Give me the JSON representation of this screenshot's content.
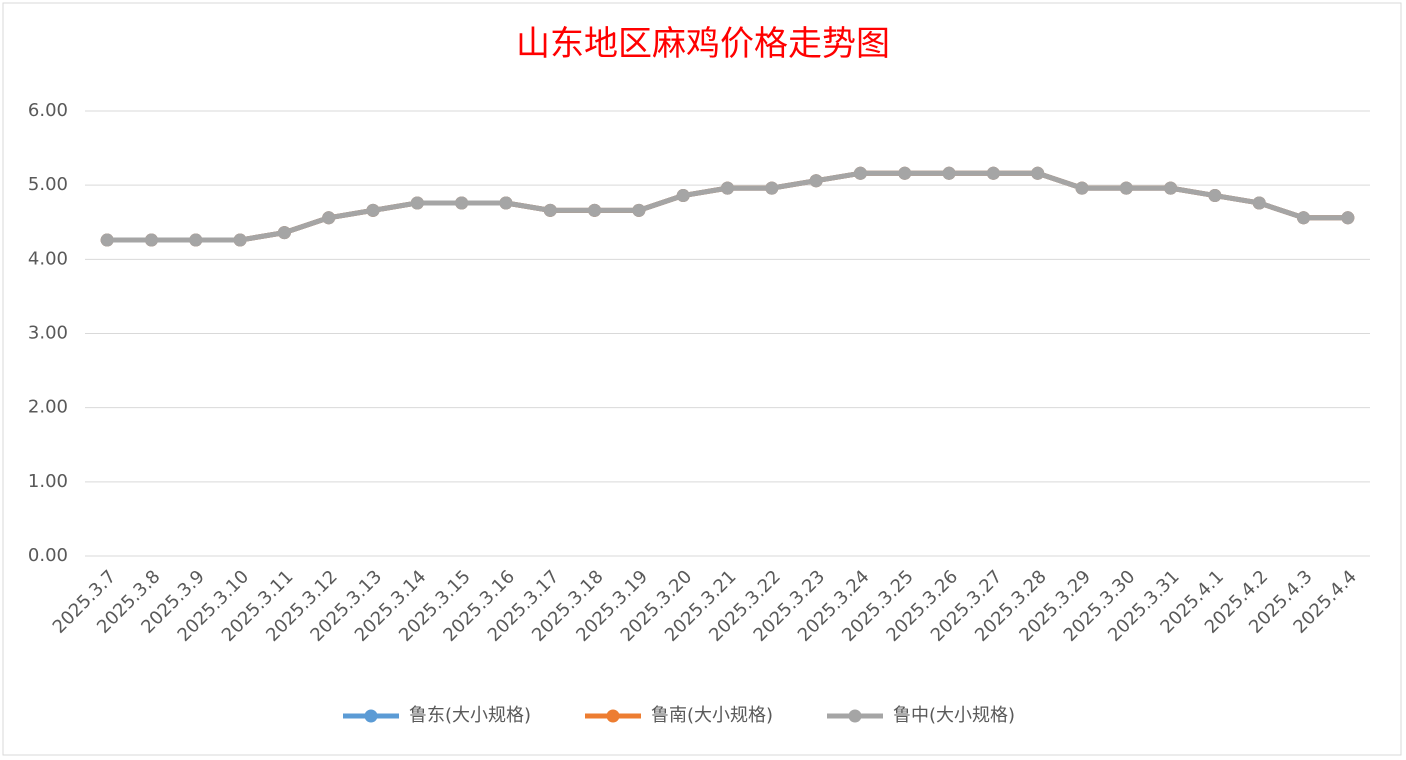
{
  "chart_data": {
    "type": "line",
    "title": "山东地区麻鸡价格走势图",
    "categories": [
      "2025.3.7",
      "2025.3.8",
      "2025.3.9",
      "2025.3.10",
      "2025.3.11",
      "2025.3.12",
      "2025.3.13",
      "2025.3.14",
      "2025.3.15",
      "2025.3.16",
      "2025.3.17",
      "2025.3.18",
      "2025.3.19",
      "2025.3.20",
      "2025.3.21",
      "2025.3.22",
      "2025.3.23",
      "2025.3.24",
      "2025.3.25",
      "2025.3.26",
      "2025.3.27",
      "2025.3.28",
      "2025.3.29",
      "2025.3.30",
      "2025.3.31",
      "2025.4.1",
      "2025.4.2",
      "2025.4.3",
      "2025.4.4"
    ],
    "series": [
      {
        "name": "鲁东(大小规格)",
        "color": "#5b9bd5",
        "values": [
          4.26,
          4.26,
          4.26,
          4.26,
          4.36,
          4.56,
          4.66,
          4.76,
          4.76,
          4.76,
          4.66,
          4.66,
          4.66,
          4.86,
          4.96,
          4.96,
          5.06,
          5.16,
          5.16,
          5.16,
          5.16,
          5.16,
          4.96,
          4.96,
          4.96,
          4.86,
          4.76,
          4.56,
          4.56
        ]
      },
      {
        "name": "鲁南(大小规格)",
        "color": "#ed7d31",
        "values": [
          4.26,
          4.26,
          4.26,
          4.26,
          4.36,
          4.56,
          4.66,
          4.76,
          4.76,
          4.76,
          4.66,
          4.66,
          4.66,
          4.86,
          4.96,
          4.96,
          5.06,
          5.16,
          5.16,
          5.16,
          5.16,
          5.16,
          4.96,
          4.96,
          4.96,
          4.86,
          4.76,
          4.56,
          4.56
        ]
      },
      {
        "name": "鲁中(大小规格)",
        "color": "#a5a5a5",
        "values": [
          4.26,
          4.26,
          4.26,
          4.26,
          4.36,
          4.56,
          4.66,
          4.76,
          4.76,
          4.76,
          4.66,
          4.66,
          4.66,
          4.86,
          4.96,
          4.96,
          5.06,
          5.16,
          5.16,
          5.16,
          5.16,
          5.16,
          4.96,
          4.96,
          4.96,
          4.86,
          4.76,
          4.56,
          4.56
        ]
      }
    ],
    "ylim": [
      0,
      6
    ],
    "yticks": [
      {
        "value": 0,
        "label": "0.00"
      },
      {
        "value": 1,
        "label": "1.00"
      },
      {
        "value": 2,
        "label": "2.00"
      },
      {
        "value": 3,
        "label": "3.00"
      },
      {
        "value": 4,
        "label": "4.00"
      },
      {
        "value": 5,
        "label": "5.00"
      },
      {
        "value": 6,
        "label": "6.00"
      }
    ],
    "grid": true,
    "legend": "bottom"
  }
}
